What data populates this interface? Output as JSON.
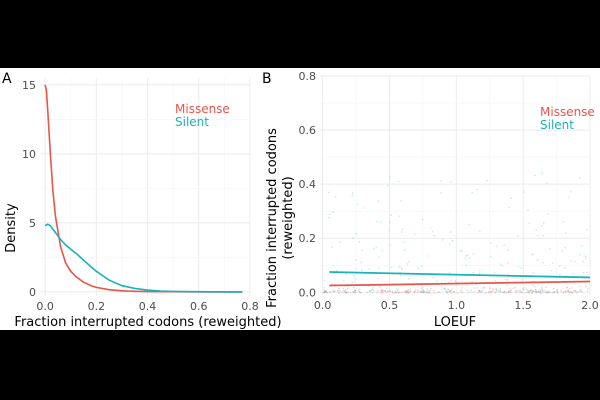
{
  "colors": {
    "missense": "#E8554A",
    "silent": "#19B3BB"
  },
  "chart_data": [
    {
      "panel": "A",
      "type": "line",
      "xlabel": "Fraction interrupted codons (reweighted)",
      "ylabel": "Density",
      "xlim": [
        -0.02,
        0.8
      ],
      "ylim": [
        -0.3,
        15.5
      ],
      "xticks": [
        0.0,
        0.2,
        0.4,
        0.6,
        0.8
      ],
      "xtick_labels": [
        "0.0",
        "0.2",
        "0.4",
        "0.6",
        "0.8"
      ],
      "yticks": [
        0,
        5,
        10,
        15
      ],
      "ytick_labels": [
        "0",
        "5",
        "10",
        "15"
      ],
      "grid": true,
      "legend": {
        "placement": "top-right",
        "entries": [
          "Missense",
          "Silent"
        ]
      },
      "series": [
        {
          "name": "Missense",
          "x": [
            0.0,
            0.005,
            0.01,
            0.02,
            0.03,
            0.04,
            0.06,
            0.08,
            0.1,
            0.12,
            0.15,
            0.18,
            0.2,
            0.25,
            0.3,
            0.35,
            0.4,
            0.5,
            0.6,
            0.7,
            0.77
          ],
          "y": [
            15.0,
            14.6,
            13.2,
            10.2,
            7.4,
            5.5,
            3.3,
            2.1,
            1.5,
            1.1,
            0.7,
            0.45,
            0.32,
            0.16,
            0.08,
            0.04,
            0.02,
            0.01,
            0.0,
            0.0,
            0.0
          ]
        },
        {
          "name": "Silent",
          "x": [
            0.0,
            0.01,
            0.02,
            0.04,
            0.06,
            0.08,
            0.1,
            0.12,
            0.15,
            0.18,
            0.2,
            0.25,
            0.3,
            0.35,
            0.4,
            0.45,
            0.5,
            0.6,
            0.7,
            0.77
          ],
          "y": [
            4.8,
            4.9,
            4.8,
            4.3,
            3.8,
            3.4,
            3.1,
            2.8,
            2.3,
            1.8,
            1.5,
            0.85,
            0.45,
            0.25,
            0.13,
            0.06,
            0.03,
            0.01,
            0.0,
            0.0
          ]
        }
      ]
    },
    {
      "panel": "B",
      "type": "scatter",
      "xlabel": "LOEUF",
      "ylabel": "Fraction interrupted codons (reweighted)",
      "ylabel_lines": [
        "Fraction interrupted codons",
        "(reweighted)"
      ],
      "xlim": [
        -0.02,
        2.0
      ],
      "ylim": [
        -0.01,
        0.8
      ],
      "xticks": [
        0.0,
        0.5,
        1.0,
        1.5,
        2.0
      ],
      "xtick_labels": [
        "0.0",
        "0.5",
        "1.0",
        "1.5",
        "2.0"
      ],
      "yticks": [
        0.0,
        0.2,
        0.4,
        0.6,
        0.8
      ],
      "ytick_labels": [
        "0.0",
        "0.2",
        "0.4",
        "0.6",
        "0.8"
      ],
      "grid": true,
      "legend": {
        "placement": "top-right",
        "entries": [
          "Missense",
          "Silent"
        ]
      },
      "points_per_series": 260,
      "series": [
        {
          "name": "Missense",
          "trend_x": [
            0.05,
            2.0
          ],
          "trend_y": [
            0.025,
            0.04
          ]
        },
        {
          "name": "Silent",
          "trend_x": [
            0.05,
            2.0
          ],
          "trend_y": [
            0.075,
            0.055
          ]
        }
      ]
    }
  ]
}
